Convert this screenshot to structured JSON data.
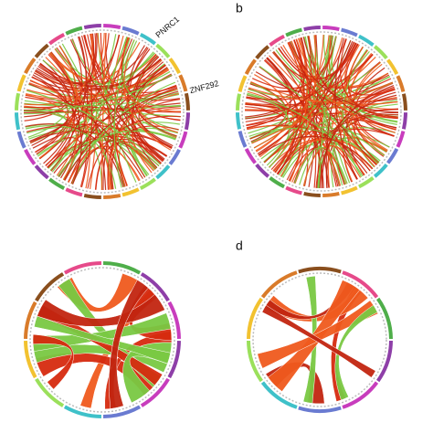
{
  "panels": [
    {
      "letter": null,
      "labels": [
        "PNRC1",
        "ZNF292"
      ]
    },
    {
      "letter": "b",
      "labels": []
    },
    {
      "letter": null,
      "labels": []
    },
    {
      "letter": "d",
      "labels": []
    }
  ]
}
